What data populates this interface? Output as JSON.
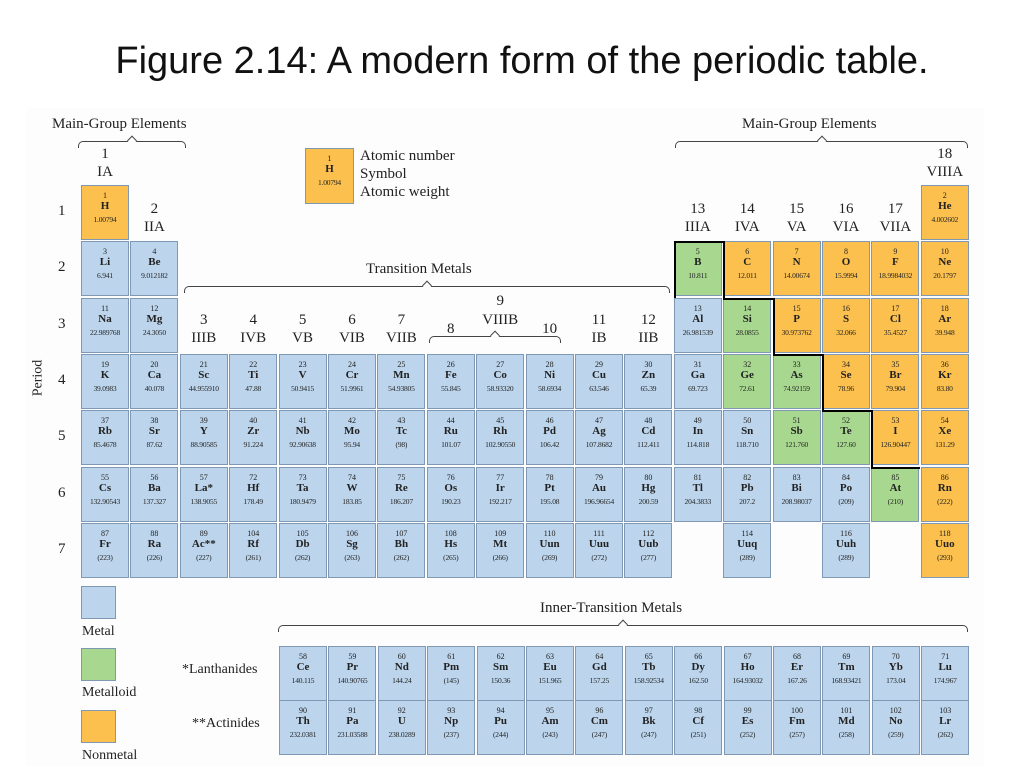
{
  "title": "Figure 2.14: A modern form of the periodic table.",
  "header": {
    "main_group_left": "Main-Group Elements",
    "main_group_right": "Main-Group Elements",
    "transition_metals": "Transition Metals",
    "inner_transition_metals": "Inner-Transition Metals",
    "period_label": "Period"
  },
  "sample_key": {
    "number": "1",
    "symbol": "H",
    "weight": "1.00794",
    "label_number": "Atomic number",
    "label_symbol": "Symbol",
    "label_weight": "Atomic weight"
  },
  "legend": {
    "metal": "Metal",
    "metalloid": "Metalloid",
    "nonmetal": "Nonmetal"
  },
  "colors": {
    "metal": "#bcd5ec",
    "metalloid": "#a8d890",
    "nonmetal": "#fcc04e"
  },
  "series_labels": {
    "lanthanides": "*Lanthanides",
    "actinides": "**Actinides"
  },
  "periods": [
    "1",
    "2",
    "3",
    "4",
    "5",
    "6",
    "7"
  ],
  "groups": [
    {
      "num": "1",
      "roman": "IA"
    },
    {
      "num": "2",
      "roman": "IIA"
    },
    {
      "num": "3",
      "roman": "IIIB"
    },
    {
      "num": "4",
      "roman": "IVB"
    },
    {
      "num": "5",
      "roman": "VB"
    },
    {
      "num": "6",
      "roman": "VIB"
    },
    {
      "num": "7",
      "roman": "VIIB"
    },
    {
      "num": "8",
      "roman": ""
    },
    {
      "num": "9",
      "roman": "VIIIB"
    },
    {
      "num": "10",
      "roman": ""
    },
    {
      "num": "11",
      "roman": "IB"
    },
    {
      "num": "12",
      "roman": "IIB"
    },
    {
      "num": "13",
      "roman": "IIIA"
    },
    {
      "num": "14",
      "roman": "IVA"
    },
    {
      "num": "15",
      "roman": "VA"
    },
    {
      "num": "16",
      "roman": "VIA"
    },
    {
      "num": "17",
      "roman": "VIIA"
    },
    {
      "num": "18",
      "roman": "VIIIA"
    }
  ],
  "elements": [
    {
      "n": "1",
      "s": "H",
      "w": "1.00794",
      "p": 1,
      "g": 1,
      "t": "nonmetal"
    },
    {
      "n": "2",
      "s": "He",
      "w": "4.002602",
      "p": 1,
      "g": 18,
      "t": "nonmetal"
    },
    {
      "n": "3",
      "s": "Li",
      "w": "6.941",
      "p": 2,
      "g": 1,
      "t": "metal"
    },
    {
      "n": "4",
      "s": "Be",
      "w": "9.012182",
      "p": 2,
      "g": 2,
      "t": "metal"
    },
    {
      "n": "5",
      "s": "B",
      "w": "10.811",
      "p": 2,
      "g": 13,
      "t": "metalloid"
    },
    {
      "n": "6",
      "s": "C",
      "w": "12.011",
      "p": 2,
      "g": 14,
      "t": "nonmetal"
    },
    {
      "n": "7",
      "s": "N",
      "w": "14.00674",
      "p": 2,
      "g": 15,
      "t": "nonmetal"
    },
    {
      "n": "8",
      "s": "O",
      "w": "15.9994",
      "p": 2,
      "g": 16,
      "t": "nonmetal"
    },
    {
      "n": "9",
      "s": "F",
      "w": "18.9984032",
      "p": 2,
      "g": 17,
      "t": "nonmetal"
    },
    {
      "n": "10",
      "s": "Ne",
      "w": "20.1797",
      "p": 2,
      "g": 18,
      "t": "nonmetal"
    },
    {
      "n": "11",
      "s": "Na",
      "w": "22.989768",
      "p": 3,
      "g": 1,
      "t": "metal"
    },
    {
      "n": "12",
      "s": "Mg",
      "w": "24.3050",
      "p": 3,
      "g": 2,
      "t": "metal"
    },
    {
      "n": "13",
      "s": "Al",
      "w": "26.981539",
      "p": 3,
      "g": 13,
      "t": "metal"
    },
    {
      "n": "14",
      "s": "Si",
      "w": "28.0855",
      "p": 3,
      "g": 14,
      "t": "metalloid"
    },
    {
      "n": "15",
      "s": "P",
      "w": "30.973762",
      "p": 3,
      "g": 15,
      "t": "nonmetal"
    },
    {
      "n": "16",
      "s": "S",
      "w": "32.066",
      "p": 3,
      "g": 16,
      "t": "nonmetal"
    },
    {
      "n": "17",
      "s": "Cl",
      "w": "35.4527",
      "p": 3,
      "g": 17,
      "t": "nonmetal"
    },
    {
      "n": "18",
      "s": "Ar",
      "w": "39.948",
      "p": 3,
      "g": 18,
      "t": "nonmetal"
    },
    {
      "n": "19",
      "s": "K",
      "w": "39.0983",
      "p": 4,
      "g": 1,
      "t": "metal"
    },
    {
      "n": "20",
      "s": "Ca",
      "w": "40.078",
      "p": 4,
      "g": 2,
      "t": "metal"
    },
    {
      "n": "21",
      "s": "Sc",
      "w": "44.955910",
      "p": 4,
      "g": 3,
      "t": "metal"
    },
    {
      "n": "22",
      "s": "Ti",
      "w": "47.88",
      "p": 4,
      "g": 4,
      "t": "metal"
    },
    {
      "n": "23",
      "s": "V",
      "w": "50.9415",
      "p": 4,
      "g": 5,
      "t": "metal"
    },
    {
      "n": "24",
      "s": "Cr",
      "w": "51.9961",
      "p": 4,
      "g": 6,
      "t": "metal"
    },
    {
      "n": "25",
      "s": "Mn",
      "w": "54.93805",
      "p": 4,
      "g": 7,
      "t": "metal"
    },
    {
      "n": "26",
      "s": "Fe",
      "w": "55.845",
      "p": 4,
      "g": 8,
      "t": "metal"
    },
    {
      "n": "27",
      "s": "Co",
      "w": "58.93320",
      "p": 4,
      "g": 9,
      "t": "metal"
    },
    {
      "n": "28",
      "s": "Ni",
      "w": "58.6934",
      "p": 4,
      "g": 10,
      "t": "metal"
    },
    {
      "n": "29",
      "s": "Cu",
      "w": "63.546",
      "p": 4,
      "g": 11,
      "t": "metal"
    },
    {
      "n": "30",
      "s": "Zn",
      "w": "65.39",
      "p": 4,
      "g": 12,
      "t": "metal"
    },
    {
      "n": "31",
      "s": "Ga",
      "w": "69.723",
      "p": 4,
      "g": 13,
      "t": "metal"
    },
    {
      "n": "32",
      "s": "Ge",
      "w": "72.61",
      "p": 4,
      "g": 14,
      "t": "metalloid"
    },
    {
      "n": "33",
      "s": "As",
      "w": "74.92159",
      "p": 4,
      "g": 15,
      "t": "metalloid"
    },
    {
      "n": "34",
      "s": "Se",
      "w": "78.96",
      "p": 4,
      "g": 16,
      "t": "nonmetal"
    },
    {
      "n": "35",
      "s": "Br",
      "w": "79.904",
      "p": 4,
      "g": 17,
      "t": "nonmetal"
    },
    {
      "n": "36",
      "s": "Kr",
      "w": "83.80",
      "p": 4,
      "g": 18,
      "t": "nonmetal"
    },
    {
      "n": "37",
      "s": "Rb",
      "w": "85.4678",
      "p": 5,
      "g": 1,
      "t": "metal"
    },
    {
      "n": "38",
      "s": "Sr",
      "w": "87.62",
      "p": 5,
      "g": 2,
      "t": "metal"
    },
    {
      "n": "39",
      "s": "Y",
      "w": "88.90585",
      "p": 5,
      "g": 3,
      "t": "metal"
    },
    {
      "n": "40",
      "s": "Zr",
      "w": "91.224",
      "p": 5,
      "g": 4,
      "t": "metal"
    },
    {
      "n": "41",
      "s": "Nb",
      "w": "92.90638",
      "p": 5,
      "g": 5,
      "t": "metal"
    },
    {
      "n": "42",
      "s": "Mo",
      "w": "95.94",
      "p": 5,
      "g": 6,
      "t": "metal"
    },
    {
      "n": "43",
      "s": "Tc",
      "w": "(98)",
      "p": 5,
      "g": 7,
      "t": "metal"
    },
    {
      "n": "44",
      "s": "Ru",
      "w": "101.07",
      "p": 5,
      "g": 8,
      "t": "metal"
    },
    {
      "n": "45",
      "s": "Rh",
      "w": "102.90550",
      "p": 5,
      "g": 9,
      "t": "metal"
    },
    {
      "n": "46",
      "s": "Pd",
      "w": "106.42",
      "p": 5,
      "g": 10,
      "t": "metal"
    },
    {
      "n": "47",
      "s": "Ag",
      "w": "107.8682",
      "p": 5,
      "g": 11,
      "t": "metal"
    },
    {
      "n": "48",
      "s": "Cd",
      "w": "112.411",
      "p": 5,
      "g": 12,
      "t": "metal"
    },
    {
      "n": "49",
      "s": "In",
      "w": "114.818",
      "p": 5,
      "g": 13,
      "t": "metal"
    },
    {
      "n": "50",
      "s": "Sn",
      "w": "118.710",
      "p": 5,
      "g": 14,
      "t": "metal"
    },
    {
      "n": "51",
      "s": "Sb",
      "w": "121.760",
      "p": 5,
      "g": 15,
      "t": "metalloid"
    },
    {
      "n": "52",
      "s": "Te",
      "w": "127.60",
      "p": 5,
      "g": 16,
      "t": "metalloid"
    },
    {
      "n": "53",
      "s": "I",
      "w": "126.90447",
      "p": 5,
      "g": 17,
      "t": "nonmetal"
    },
    {
      "n": "54",
      "s": "Xe",
      "w": "131.29",
      "p": 5,
      "g": 18,
      "t": "nonmetal"
    },
    {
      "n": "55",
      "s": "Cs",
      "w": "132.90543",
      "p": 6,
      "g": 1,
      "t": "metal"
    },
    {
      "n": "56",
      "s": "Ba",
      "w": "137.327",
      "p": 6,
      "g": 2,
      "t": "metal"
    },
    {
      "n": "57",
      "s": "La*",
      "w": "138.9055",
      "p": 6,
      "g": 3,
      "t": "metal"
    },
    {
      "n": "72",
      "s": "Hf",
      "w": "178.49",
      "p": 6,
      "g": 4,
      "t": "metal"
    },
    {
      "n": "73",
      "s": "Ta",
      "w": "180.9479",
      "p": 6,
      "g": 5,
      "t": "metal"
    },
    {
      "n": "74",
      "s": "W",
      "w": "183.85",
      "p": 6,
      "g": 6,
      "t": "metal"
    },
    {
      "n": "75",
      "s": "Re",
      "w": "186.207",
      "p": 6,
      "g": 7,
      "t": "metal"
    },
    {
      "n": "76",
      "s": "Os",
      "w": "190.23",
      "p": 6,
      "g": 8,
      "t": "metal"
    },
    {
      "n": "77",
      "s": "Ir",
      "w": "192.217",
      "p": 6,
      "g": 9,
      "t": "metal"
    },
    {
      "n": "78",
      "s": "Pt",
      "w": "195.08",
      "p": 6,
      "g": 10,
      "t": "metal"
    },
    {
      "n": "79",
      "s": "Au",
      "w": "196.96654",
      "p": 6,
      "g": 11,
      "t": "metal"
    },
    {
      "n": "80",
      "s": "Hg",
      "w": "200.59",
      "p": 6,
      "g": 12,
      "t": "metal"
    },
    {
      "n": "81",
      "s": "Tl",
      "w": "204.3833",
      "p": 6,
      "g": 13,
      "t": "metal"
    },
    {
      "n": "82",
      "s": "Pb",
      "w": "207.2",
      "p": 6,
      "g": 14,
      "t": "metal"
    },
    {
      "n": "83",
      "s": "Bi",
      "w": "208.98037",
      "p": 6,
      "g": 15,
      "t": "metal"
    },
    {
      "n": "84",
      "s": "Po",
      "w": "(209)",
      "p": 6,
      "g": 16,
      "t": "metal"
    },
    {
      "n": "85",
      "s": "At",
      "w": "(210)",
      "p": 6,
      "g": 17,
      "t": "metalloid"
    },
    {
      "n": "86",
      "s": "Rn",
      "w": "(222)",
      "p": 6,
      "g": 18,
      "t": "nonmetal"
    },
    {
      "n": "87",
      "s": "Fr",
      "w": "(223)",
      "p": 7,
      "g": 1,
      "t": "metal"
    },
    {
      "n": "88",
      "s": "Ra",
      "w": "(226)",
      "p": 7,
      "g": 2,
      "t": "metal"
    },
    {
      "n": "89",
      "s": "Ac**",
      "w": "(227)",
      "p": 7,
      "g": 3,
      "t": "metal"
    },
    {
      "n": "104",
      "s": "Rf",
      "w": "(261)",
      "p": 7,
      "g": 4,
      "t": "metal"
    },
    {
      "n": "105",
      "s": "Db",
      "w": "(262)",
      "p": 7,
      "g": 5,
      "t": "metal"
    },
    {
      "n": "106",
      "s": "Sg",
      "w": "(263)",
      "p": 7,
      "g": 6,
      "t": "metal"
    },
    {
      "n": "107",
      "s": "Bh",
      "w": "(262)",
      "p": 7,
      "g": 7,
      "t": "metal"
    },
    {
      "n": "108",
      "s": "Hs",
      "w": "(265)",
      "p": 7,
      "g": 8,
      "t": "metal"
    },
    {
      "n": "109",
      "s": "Mt",
      "w": "(266)",
      "p": 7,
      "g": 9,
      "t": "metal"
    },
    {
      "n": "110",
      "s": "Uun",
      "w": "(269)",
      "p": 7,
      "g": 10,
      "t": "metal"
    },
    {
      "n": "111",
      "s": "Uuu",
      "w": "(272)",
      "p": 7,
      "g": 11,
      "t": "metal"
    },
    {
      "n": "112",
      "s": "Uub",
      "w": "(277)",
      "p": 7,
      "g": 12,
      "t": "metal"
    },
    {
      "n": "114",
      "s": "Uuq",
      "w": "(289)",
      "p": 7,
      "g": 14,
      "t": "metal"
    },
    {
      "n": "116",
      "s": "Uuh",
      "w": "(289)",
      "p": 7,
      "g": 16,
      "t": "metal"
    },
    {
      "n": "118",
      "s": "Uuo",
      "w": "(293)",
      "p": 7,
      "g": 18,
      "t": "nonmetal"
    }
  ],
  "lanthanides": [
    {
      "n": "58",
      "s": "Ce",
      "w": "140.115"
    },
    {
      "n": "59",
      "s": "Pr",
      "w": "140.90765"
    },
    {
      "n": "60",
      "s": "Nd",
      "w": "144.24"
    },
    {
      "n": "61",
      "s": "Pm",
      "w": "(145)"
    },
    {
      "n": "62",
      "s": "Sm",
      "w": "150.36"
    },
    {
      "n": "63",
      "s": "Eu",
      "w": "151.965"
    },
    {
      "n": "64",
      "s": "Gd",
      "w": "157.25"
    },
    {
      "n": "65",
      "s": "Tb",
      "w": "158.92534"
    },
    {
      "n": "66",
      "s": "Dy",
      "w": "162.50"
    },
    {
      "n": "67",
      "s": "Ho",
      "w": "164.93032"
    },
    {
      "n": "68",
      "s": "Er",
      "w": "167.26"
    },
    {
      "n": "69",
      "s": "Tm",
      "w": "168.93421"
    },
    {
      "n": "70",
      "s": "Yb",
      "w": "173.04"
    },
    {
      "n": "71",
      "s": "Lu",
      "w": "174.967"
    }
  ],
  "actinides": [
    {
      "n": "90",
      "s": "Th",
      "w": "232.0381"
    },
    {
      "n": "91",
      "s": "Pa",
      "w": "231.03588"
    },
    {
      "n": "92",
      "s": "U",
      "w": "238.0289"
    },
    {
      "n": "93",
      "s": "Np",
      "w": "(237)"
    },
    {
      "n": "94",
      "s": "Pu",
      "w": "(244)"
    },
    {
      "n": "95",
      "s": "Am",
      "w": "(243)"
    },
    {
      "n": "96",
      "s": "Cm",
      "w": "(247)"
    },
    {
      "n": "97",
      "s": "Bk",
      "w": "(247)"
    },
    {
      "n": "98",
      "s": "Cf",
      "w": "(251)"
    },
    {
      "n": "99",
      "s": "Es",
      "w": "(252)"
    },
    {
      "n": "100",
      "s": "Fm",
      "w": "(257)"
    },
    {
      "n": "101",
      "s": "Md",
      "w": "(258)"
    },
    {
      "n": "102",
      "s": "No",
      "w": "(259)"
    },
    {
      "n": "103",
      "s": "Lr",
      "w": "(262)"
    }
  ]
}
